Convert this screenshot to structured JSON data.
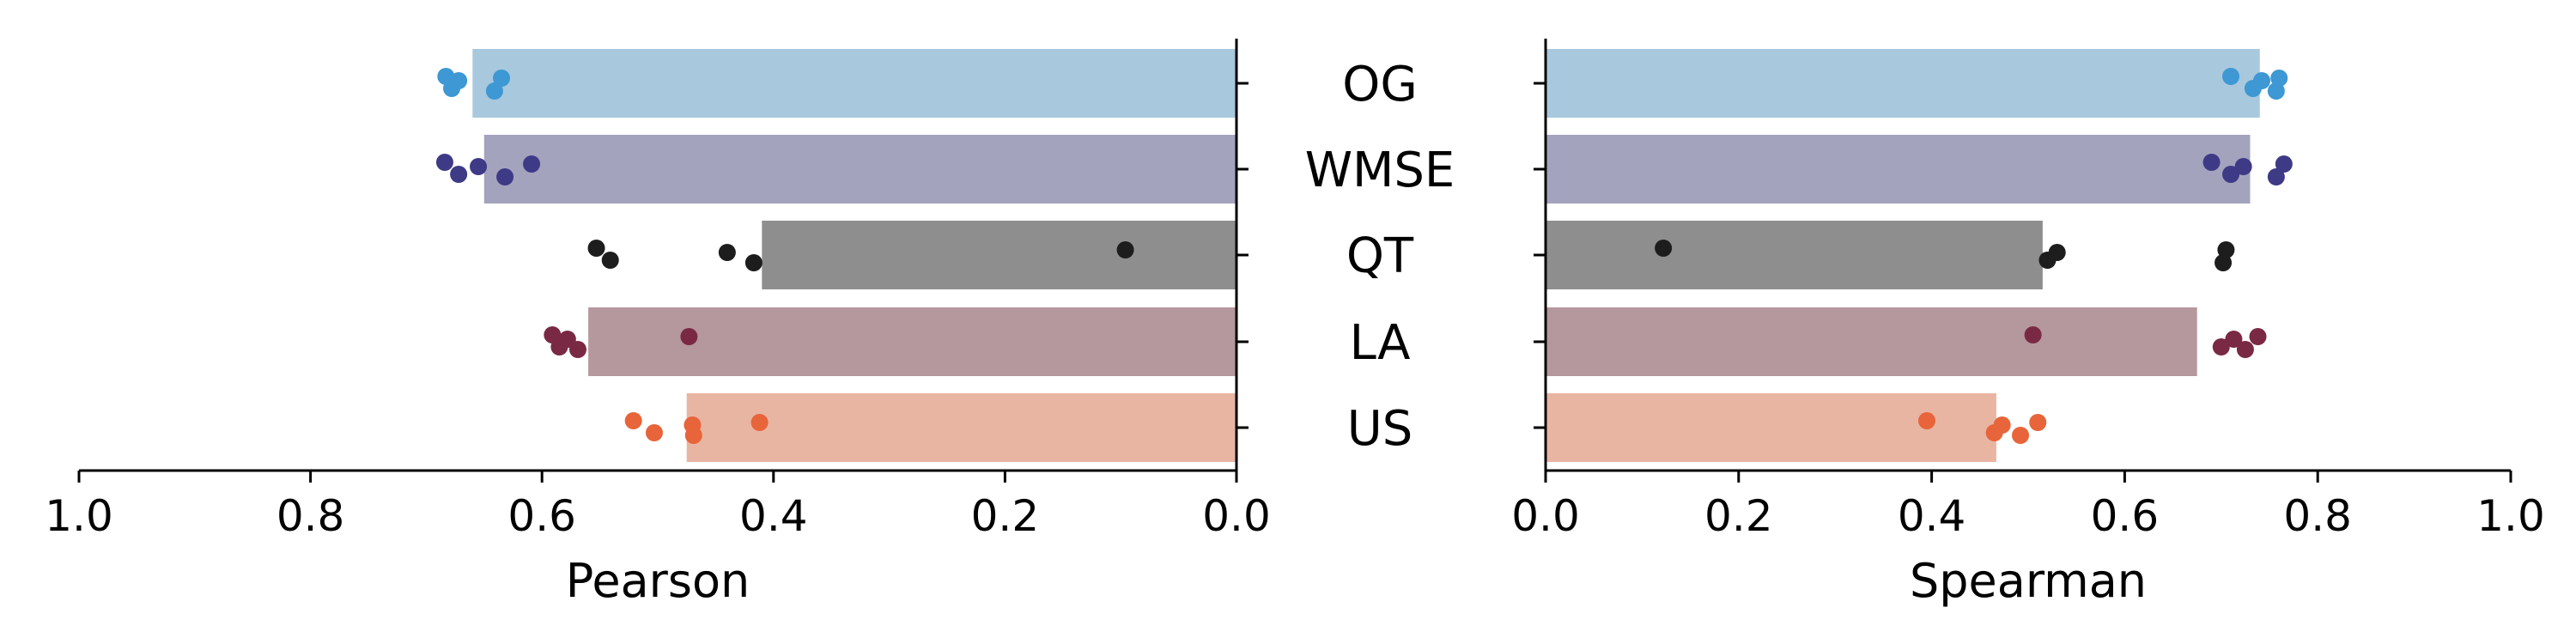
{
  "chart_data": [
    {
      "type": "bar",
      "orientation": "horizontal",
      "xlabel": "Pearson",
      "x_direction": "reversed",
      "xlim": [
        1.0,
        0.0
      ],
      "xticks": [
        "1.0",
        "0.8",
        "0.6",
        "0.4",
        "0.2",
        "0.0"
      ],
      "categories": [
        "OG",
        "WMSE",
        "QT",
        "LA",
        "US"
      ],
      "values": [
        0.66,
        0.65,
        0.41,
        0.56,
        0.475
      ],
      "points": [
        [
          0.683,
          0.678,
          0.672,
          0.641,
          0.635
        ],
        [
          0.684,
          0.672,
          0.655,
          0.632,
          0.609
        ],
        [
          0.553,
          0.541,
          0.44,
          0.417,
          0.096
        ],
        [
          0.591,
          0.585,
          0.578,
          0.569,
          0.473
        ],
        [
          0.521,
          0.503,
          0.47,
          0.469,
          0.412
        ]
      ]
    },
    {
      "type": "bar",
      "orientation": "horizontal",
      "xlabel": "Spearman",
      "xlim": [
        0.0,
        1.0
      ],
      "xticks": [
        "0.0",
        "0.2",
        "0.4",
        "0.6",
        "0.8",
        "1.0"
      ],
      "categories": [
        "OG",
        "WMSE",
        "QT",
        "LA",
        "US"
      ],
      "values": [
        0.74,
        0.73,
        0.515,
        0.675,
        0.467
      ],
      "points": [
        [
          0.71,
          0.733,
          0.742,
          0.757,
          0.76
        ],
        [
          0.69,
          0.71,
          0.723,
          0.757,
          0.765
        ],
        [
          0.122,
          0.52,
          0.53,
          0.702,
          0.705
        ],
        [
          0.505,
          0.7,
          0.713,
          0.725,
          0.738
        ],
        [
          0.395,
          0.465,
          0.473,
          0.492,
          0.51
        ]
      ]
    }
  ],
  "colors": [
    "#a8c8de",
    "#a3a3bd",
    "#8e8e8e",
    "#b5979e",
    "#e8b5a2"
  ],
  "point_colors": [
    "#3d98d3",
    "#3e3a86",
    "#1d1d1d",
    "#7a2944",
    "#e8643a"
  ]
}
